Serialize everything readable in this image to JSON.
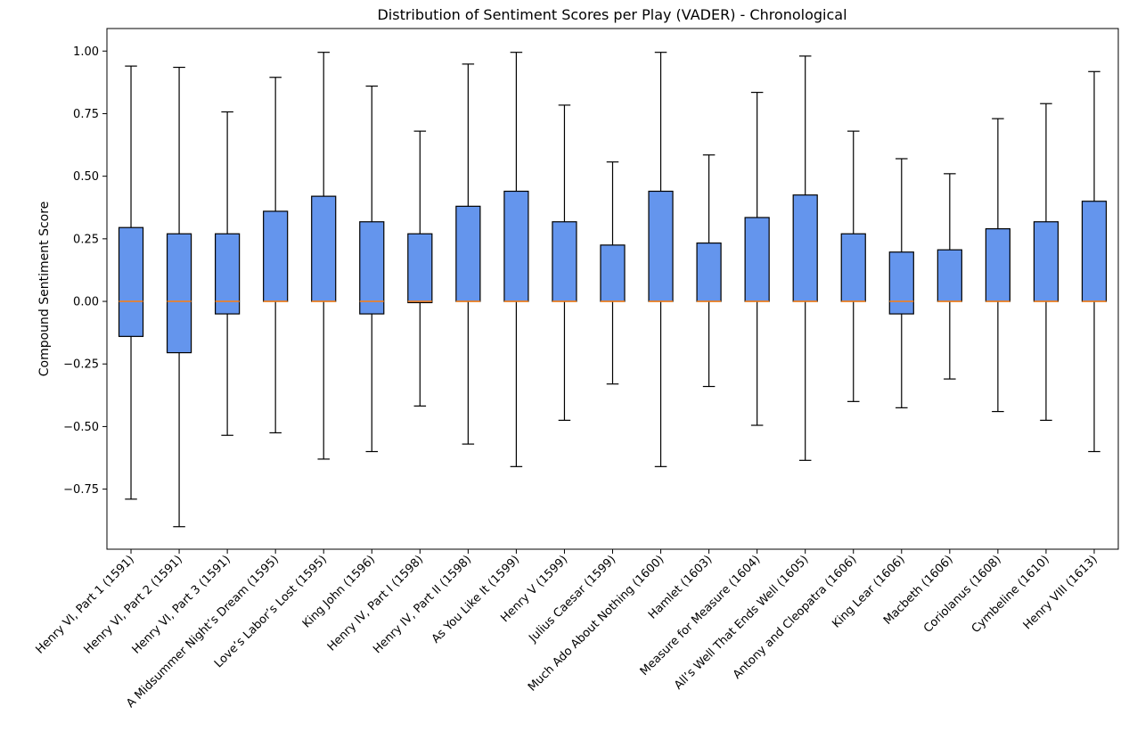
{
  "chart_data": {
    "type": "box",
    "title": "Distribution of Sentiment Scores per Play (VADER) - Chronological",
    "xlabel": "",
    "ylabel": "Compound Sentiment Score",
    "ylim": [
      -0.99,
      1.09
    ],
    "yticks": [
      -0.75,
      -0.5,
      -0.25,
      0.0,
      0.25,
      0.5,
      0.75,
      1.0
    ],
    "ytick_labels": [
      "−0.75",
      "−0.50",
      "−0.25",
      "0.00",
      "0.25",
      "0.50",
      "0.75",
      "1.00"
    ],
    "grid": false,
    "box_color": "#6495ED",
    "median_color": "#ff7f0e",
    "categories": [
      "Henry VI, Part 1 (1591)",
      "Henry VI, Part 2 (1591)",
      "Henry VI, Part 3 (1591)",
      "A Midsummer Night’s Dream (1595)",
      "Love’s Labor’s Lost (1595)",
      "King John (1596)",
      "Henry IV, Part I (1598)",
      "Henry IV, Part II (1598)",
      "As You Like It (1599)",
      "Henry V (1599)",
      "Julius Caesar (1599)",
      "Much Ado About Nothing (1600)",
      "Hamlet (1603)",
      "Measure for Measure (1604)",
      "All’s Well That Ends Well (1605)",
      "Antony and Cleopatra (1606)",
      "King Lear (1606)",
      "Macbeth (1606)",
      "Coriolanus (1608)",
      "Cymbeline (1610)",
      "Henry VIII (1613)"
    ],
    "boxes": [
      {
        "whislo": -0.79,
        "q1": -0.14,
        "med": 0.0,
        "q3": 0.295,
        "whishi": 0.94
      },
      {
        "whislo": -0.9,
        "q1": -0.205,
        "med": 0.0,
        "q3": 0.27,
        "whishi": 0.935
      },
      {
        "whislo": -0.535,
        "q1": -0.05,
        "med": 0.0,
        "q3": 0.27,
        "whishi": 0.757
      },
      {
        "whislo": -0.525,
        "q1": 0.0,
        "med": 0.0,
        "q3": 0.36,
        "whishi": 0.895
      },
      {
        "whislo": -0.63,
        "q1": 0.0,
        "med": 0.0,
        "q3": 0.42,
        "whishi": 0.995
      },
      {
        "whislo": -0.6,
        "q1": -0.05,
        "med": 0.0,
        "q3": 0.318,
        "whishi": 0.86
      },
      {
        "whislo": -0.418,
        "q1": -0.005,
        "med": 0.0,
        "q3": 0.27,
        "whishi": 0.68
      },
      {
        "whislo": -0.57,
        "q1": 0.0,
        "med": 0.0,
        "q3": 0.38,
        "whishi": 0.948
      },
      {
        "whislo": -0.66,
        "q1": 0.0,
        "med": 0.0,
        "q3": 0.44,
        "whishi": 0.995
      },
      {
        "whislo": -0.475,
        "q1": 0.0,
        "med": 0.0,
        "q3": 0.318,
        "whishi": 0.784
      },
      {
        "whislo": -0.33,
        "q1": 0.0,
        "med": 0.0,
        "q3": 0.225,
        "whishi": 0.557
      },
      {
        "whislo": -0.66,
        "q1": 0.0,
        "med": 0.0,
        "q3": 0.44,
        "whishi": 0.995
      },
      {
        "whislo": -0.34,
        "q1": 0.0,
        "med": 0.0,
        "q3": 0.233,
        "whishi": 0.585
      },
      {
        "whislo": -0.495,
        "q1": 0.0,
        "med": 0.0,
        "q3": 0.335,
        "whishi": 0.835
      },
      {
        "whislo": -0.635,
        "q1": 0.0,
        "med": 0.0,
        "q3": 0.425,
        "whishi": 0.98
      },
      {
        "whislo": -0.4,
        "q1": 0.0,
        "med": 0.0,
        "q3": 0.27,
        "whishi": 0.68
      },
      {
        "whislo": -0.425,
        "q1": -0.05,
        "med": 0.0,
        "q3": 0.197,
        "whishi": 0.57
      },
      {
        "whislo": -0.31,
        "q1": 0.0,
        "med": 0.0,
        "q3": 0.206,
        "whishi": 0.51
      },
      {
        "whislo": -0.44,
        "q1": 0.0,
        "med": 0.0,
        "q3": 0.29,
        "whishi": 0.73
      },
      {
        "whislo": -0.475,
        "q1": 0.0,
        "med": 0.0,
        "q3": 0.318,
        "whishi": 0.79
      },
      {
        "whislo": -0.6,
        "q1": 0.0,
        "med": 0.0,
        "q3": 0.4,
        "whishi": 0.918
      }
    ]
  }
}
